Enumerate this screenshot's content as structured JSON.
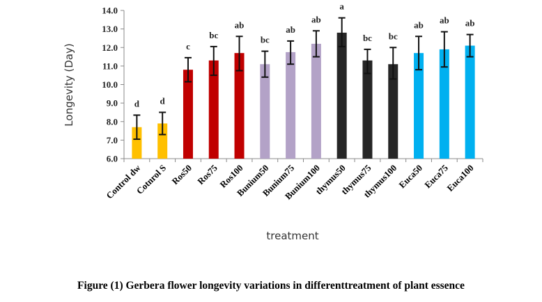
{
  "caption": "Figure (1) Gerbera flower longevity variations in differenttreatment of plant essence",
  "chart_data": {
    "type": "bar",
    "title": "",
    "xlabel": "treatment",
    "ylabel": "Longevity (Day)",
    "ylim": [
      6.0,
      14.0
    ],
    "yticks": [
      "6.0",
      "7.0",
      "8.0",
      "9.0",
      "10.0",
      "11.0",
      "12.0",
      "13.0",
      "14.0"
    ],
    "grid": false,
    "legend": "none",
    "categories": [
      "Control dw",
      "Cotnrol S",
      "Ros50",
      "Ros75",
      "Ros100",
      "Bunium50",
      "Bunium75",
      "Bunium100",
      "thymus50",
      "thymus75",
      "thymus100",
      "Euca50",
      "Euca75",
      "Euca100"
    ],
    "values": [
      7.7,
      7.9,
      10.8,
      11.3,
      11.7,
      11.1,
      11.75,
      12.2,
      12.8,
      11.3,
      11.1,
      11.7,
      11.9,
      12.1
    ],
    "error_low": [
      7.05,
      7.3,
      10.15,
      10.5,
      10.75,
      10.4,
      11.1,
      11.5,
      12.05,
      10.6,
      10.3,
      10.8,
      10.95,
      11.5
    ],
    "error_high": [
      8.35,
      8.5,
      11.45,
      12.05,
      12.6,
      11.8,
      12.35,
      12.9,
      13.6,
      11.9,
      12.0,
      12.6,
      12.85,
      12.7
    ],
    "significance": [
      "d",
      "d",
      "c",
      "bc",
      "ab",
      "bc",
      "ab",
      "ab",
      "a",
      "bc",
      "bc",
      "ab",
      "ab",
      "ab"
    ],
    "colors": [
      "#FFC000",
      "#FFC000",
      "#C00000",
      "#C00000",
      "#C00000",
      "#B3A2C7",
      "#B3A2C7",
      "#B3A2C7",
      "#262626",
      "#262626",
      "#262626",
      "#00B0F0",
      "#00B0F0",
      "#00B0F0"
    ]
  }
}
